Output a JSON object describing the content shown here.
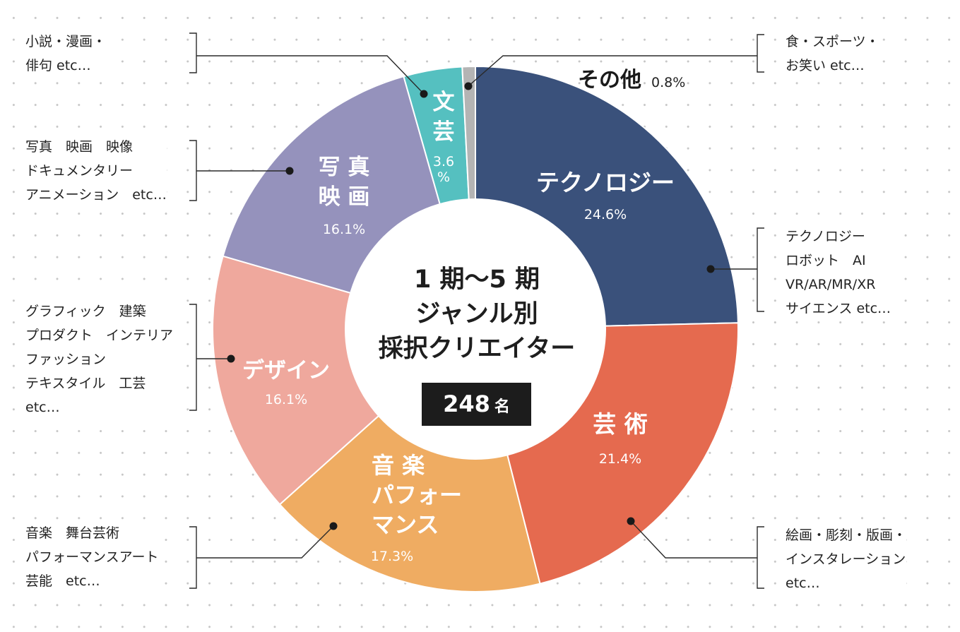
{
  "chart_data": {
    "type": "pie",
    "center_title": [
      "1 期〜5 期",
      "ジャンル別",
      "採択クリエイター"
    ],
    "total": "248",
    "total_unit": "名",
    "slices": [
      {
        "key": "technology",
        "label": [
          "テクノロジー"
        ],
        "pct_text": "24.6%",
        "value": 24.6,
        "color": "#3a517b",
        "notes": [
          "テクノロジー",
          "ロボット　AI",
          "VR/AR/MR/XR",
          "サイエンス etc…"
        ]
      },
      {
        "key": "art",
        "label": [
          "芸 術"
        ],
        "pct_text": "21.4%",
        "value": 21.4,
        "color": "#e56a4f",
        "notes": [
          "絵画・彫刻・版画・",
          "インスタレーション",
          "etc…"
        ]
      },
      {
        "key": "music",
        "label": [
          "音 楽",
          "パフォー",
          "マンス"
        ],
        "pct_text": "17.3%",
        "value": 17.3,
        "color": "#efac62",
        "notes": [
          "音楽　舞台芸術",
          "パフォーマンスアート",
          "芸能　etc…"
        ]
      },
      {
        "key": "design",
        "label": [
          "デザイン"
        ],
        "pct_text": "16.1%",
        "value": 16.1,
        "color": "#efa89d",
        "notes": [
          "グラフィック　建築",
          "プロダクト　インテリア",
          "ファッション",
          "テキスタイル　工芸",
          "etc…"
        ]
      },
      {
        "key": "photo",
        "label": [
          "写 真",
          "映 画"
        ],
        "pct_text": "16.1%",
        "value": 16.1,
        "color": "#9592bc",
        "notes": [
          "写真　映画　映像",
          "ドキュメンタリー",
          "アニメーション　etc…"
        ]
      },
      {
        "key": "literature",
        "label": [
          "文",
          "芸"
        ],
        "pct_text": "3.6",
        "pct_unit": "%",
        "value": 3.6,
        "color": "#55c0c0",
        "notes": [
          "小説・漫画・",
          "俳句 etc…"
        ]
      },
      {
        "key": "other",
        "label": [
          "その他"
        ],
        "pct_text": "0.8%",
        "value": 0.8,
        "color": "#b4b4b4",
        "notes": [
          "食・スポーツ・",
          "お笑い etc…"
        ]
      }
    ]
  }
}
